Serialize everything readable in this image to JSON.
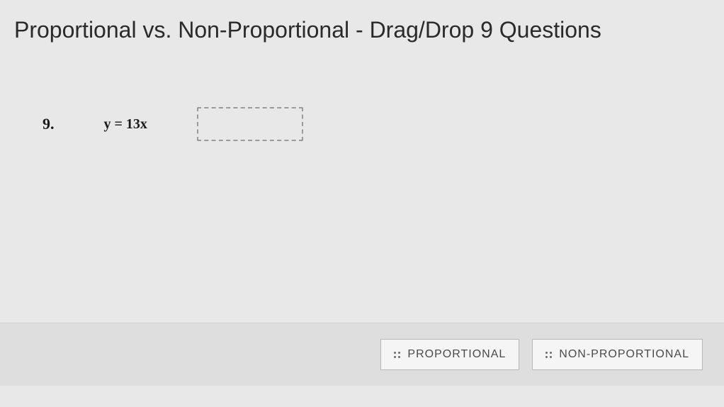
{
  "page": {
    "title": "Proportional vs. Non-Proportional - Drag/Drop 9 Questions"
  },
  "question": {
    "number": "9.",
    "equation": "y = 13x"
  },
  "answers": {
    "option1": "PROPORTIONAL",
    "option2": "NON-PROPORTIONAL"
  },
  "colors": {
    "background": "#e8e8e8",
    "text_dark": "#1a1a1a",
    "text_title": "#2a2a2a",
    "border_dashed": "#9a9a9a",
    "bottom_bar_bg": "#dedede",
    "drag_item_bg": "#f5f5f5",
    "drag_item_border": "#b8b8b8",
    "drag_item_text": "#4a4a4a"
  }
}
